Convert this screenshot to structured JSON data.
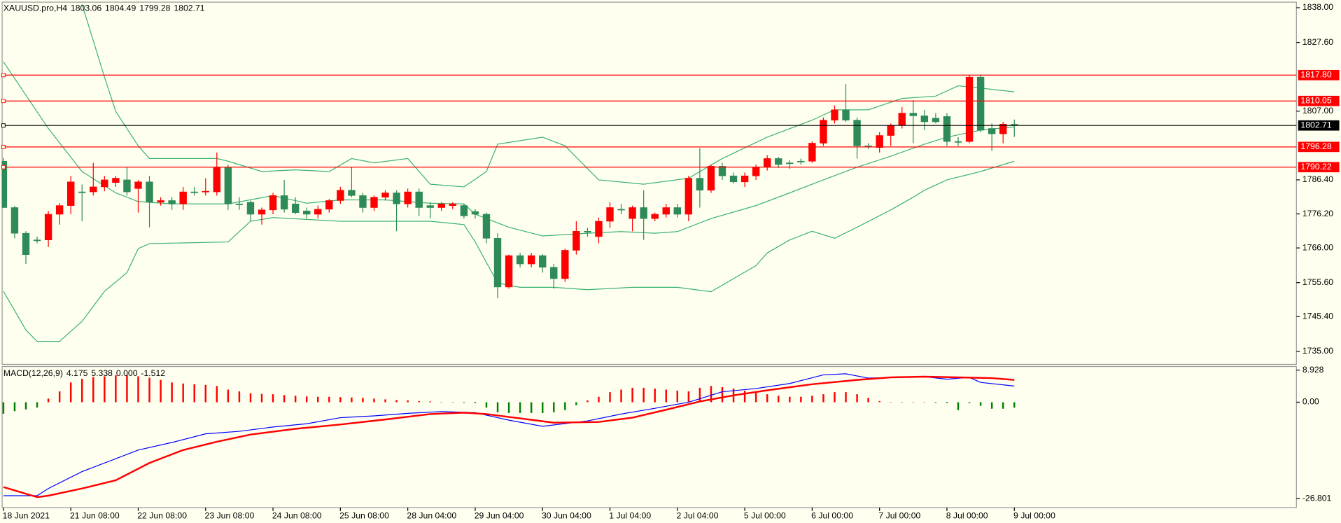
{
  "chart_data": [
    {
      "type": "candlestick",
      "title": "XAUUSD.pro,H4",
      "categories": [
        "18 Jun 2021",
        null,
        null,
        null,
        null,
        null,
        "21 Jun 08:00",
        null,
        null,
        null,
        null,
        null,
        "22 Jun 08:00",
        null,
        null,
        null,
        null,
        null,
        "23 Jun 08:00",
        null,
        null,
        null,
        null,
        null,
        "24 Jun 08:00",
        null,
        null,
        null,
        null,
        null,
        "25 Jun 08:00",
        null,
        null,
        null,
        null,
        null,
        "28 Jun 04:00",
        null,
        null,
        null,
        null,
        null,
        "29 Jun 04:00",
        null,
        null,
        null,
        null,
        null,
        "30 Jun 04:00",
        null,
        null,
        null,
        null,
        null,
        "1 Jul 04:00",
        null,
        null,
        null,
        null,
        null,
        "2 Jul 04:00",
        null,
        null,
        null,
        null,
        null,
        "5 Jul 00:00",
        null,
        null,
        null,
        null,
        null,
        "6 Jul 00:00",
        null,
        null,
        null,
        null,
        null,
        "7 Jul 00:00",
        null,
        null,
        null,
        null,
        null,
        "8 Jul 00:00",
        null,
        null,
        null,
        null,
        null,
        "9 Jul 00:00"
      ],
      "candles": [
        [
          1792.0,
          1793.0,
          1778.0,
          1778.1
        ],
        [
          1778.1,
          1778.6,
          1768.9,
          1770.4
        ],
        [
          1770.4,
          1771.0,
          1761.2,
          1764.0
        ],
        [
          1768.4,
          1769.4,
          1767.4,
          1768.4
        ],
        [
          1768.4,
          1777.1,
          1766.3,
          1776.1
        ],
        [
          1776.1,
          1779.4,
          1773.0,
          1778.7
        ],
        [
          1778.7,
          1787.6,
          1776.1,
          1785.8
        ],
        [
          1782.8,
          1785.0,
          1774.0,
          1782.8
        ],
        [
          1782.8,
          1791.5,
          1781.7,
          1784.3
        ],
        [
          1784.3,
          1787.6,
          1783.0,
          1786.4
        ],
        [
          1785.6,
          1787.6,
          1784.3,
          1786.9
        ],
        [
          1786.4,
          1790.2,
          1781.7,
          1782.8
        ],
        [
          1783.8,
          1786.4,
          1776.6,
          1785.8
        ],
        [
          1785.8,
          1787.6,
          1772.2,
          1779.7
        ],
        [
          1779.7,
          1781.2,
          1778.7,
          1780.2
        ],
        [
          1780.2,
          1781.2,
          1777.4,
          1779.2
        ],
        [
          1779.2,
          1784.3,
          1777.4,
          1782.8
        ],
        [
          1782.8,
          1784.3,
          1781.7,
          1782.8
        ],
        [
          1782.8,
          1786.9,
          1781.7,
          1783.0
        ],
        [
          1782.8,
          1794.6,
          1781.7,
          1790.2
        ],
        [
          1790.2,
          1791.0,
          1777.4,
          1779.2
        ],
        [
          1779.2,
          1781.2,
          1777.4,
          1779.2
        ],
        [
          1779.7,
          1780.2,
          1774.0,
          1776.1
        ],
        [
          1776.1,
          1778.1,
          1773.0,
          1777.4
        ],
        [
          1777.4,
          1782.5,
          1776.1,
          1781.7
        ],
        [
          1781.7,
          1786.4,
          1776.6,
          1777.6
        ],
        [
          1779.2,
          1781.2,
          1776.1,
          1776.6
        ],
        [
          1777.1,
          1778.1,
          1774.8,
          1776.1
        ],
        [
          1776.1,
          1778.7,
          1774.8,
          1777.6
        ],
        [
          1777.6,
          1780.7,
          1776.6,
          1780.2
        ],
        [
          1780.2,
          1784.3,
          1779.2,
          1783.3
        ],
        [
          1783.3,
          1790.2,
          1781.2,
          1781.7
        ],
        [
          1781.7,
          1782.5,
          1776.6,
          1778.1
        ],
        [
          1778.1,
          1781.7,
          1777.1,
          1781.2
        ],
        [
          1781.2,
          1783.3,
          1780.2,
          1782.5
        ],
        [
          1782.5,
          1783.3,
          1771.0,
          1779.2
        ],
        [
          1779.2,
          1783.8,
          1778.1,
          1782.8
        ],
        [
          1782.8,
          1783.8,
          1775.6,
          1778.1
        ],
        [
          1778.7,
          1779.7,
          1774.8,
          1778.1
        ],
        [
          1778.1,
          1779.7,
          1777.1,
          1779.2
        ],
        [
          1778.7,
          1779.7,
          1777.6,
          1779.2
        ],
        [
          1778.7,
          1779.2,
          1774.8,
          1775.6
        ],
        [
          1776.9,
          1777.6,
          1774.8,
          1776.1
        ],
        [
          1776.1,
          1776.6,
          1767.4,
          1768.9
        ],
        [
          1768.9,
          1770.4,
          1750.9,
          1754.3
        ],
        [
          1754.3,
          1764.0,
          1753.8,
          1763.7
        ],
        [
          1763.7,
          1764.5,
          1760.2,
          1761.2
        ],
        [
          1761.2,
          1764.5,
          1760.2,
          1763.7
        ],
        [
          1763.7,
          1764.2,
          1758.6,
          1760.2
        ],
        [
          1760.2,
          1761.2,
          1753.8,
          1756.8
        ],
        [
          1756.8,
          1765.8,
          1755.8,
          1765.3
        ],
        [
          1765.3,
          1774.0,
          1764.0,
          1771.0
        ],
        [
          1771.0,
          1772.0,
          1769.4,
          1771.0
        ],
        [
          1769.4,
          1775.1,
          1767.4,
          1774.0
        ],
        [
          1774.0,
          1779.7,
          1772.0,
          1778.1
        ],
        [
          1777.6,
          1779.2,
          1776.1,
          1777.4
        ],
        [
          1774.8,
          1778.7,
          1771.0,
          1778.1
        ],
        [
          1778.1,
          1783.3,
          1768.4,
          1774.8
        ],
        [
          1774.8,
          1776.6,
          1774.0,
          1776.1
        ],
        [
          1776.1,
          1779.2,
          1775.1,
          1778.1
        ],
        [
          1778.1,
          1779.2,
          1775.1,
          1776.1
        ],
        [
          1776.1,
          1787.6,
          1774.0,
          1786.9
        ],
        [
          1786.9,
          1795.9,
          1778.1,
          1783.3
        ],
        [
          1783.3,
          1791.0,
          1782.5,
          1790.5
        ],
        [
          1790.5,
          1791.5,
          1786.4,
          1787.6
        ],
        [
          1787.6,
          1788.6,
          1785.3,
          1785.8
        ],
        [
          1785.8,
          1788.6,
          1784.3,
          1787.6
        ],
        [
          1787.6,
          1791.0,
          1786.4,
          1790.2
        ],
        [
          1790.2,
          1793.8,
          1789.2,
          1792.8
        ],
        [
          1792.8,
          1793.3,
          1790.0,
          1791.0
        ],
        [
          1791.5,
          1792.3,
          1789.7,
          1791.5
        ],
        [
          1792.0,
          1792.8,
          1791.0,
          1792.0
        ],
        [
          1792.0,
          1797.9,
          1791.5,
          1797.4
        ],
        [
          1797.4,
          1805.1,
          1796.6,
          1804.3
        ],
        [
          1804.3,
          1808.7,
          1803.3,
          1807.4
        ],
        [
          1807.4,
          1815.1,
          1803.8,
          1804.3
        ],
        [
          1804.3,
          1805.1,
          1792.8,
          1796.6
        ],
        [
          1796.6,
          1797.4,
          1795.6,
          1796.6
        ],
        [
          1796.1,
          1800.7,
          1794.6,
          1799.7
        ],
        [
          1799.7,
          1803.3,
          1796.6,
          1802.8
        ],
        [
          1802.8,
          1808.2,
          1801.8,
          1806.4
        ],
        [
          1806.4,
          1810.3,
          1797.4,
          1805.6
        ],
        [
          1805.6,
          1807.4,
          1801.3,
          1803.8
        ],
        [
          1804.9,
          1806.4,
          1803.3,
          1803.8
        ],
        [
          1805.4,
          1806.4,
          1796.6,
          1797.9
        ],
        [
          1797.9,
          1799.2,
          1796.6,
          1797.9
        ],
        [
          1797.9,
          1817.8,
          1797.4,
          1817.2
        ],
        [
          1817.2,
          1818.0,
          1800.7,
          1801.3
        ],
        [
          1801.8,
          1803.3,
          1795.1,
          1800.2
        ],
        [
          1800.2,
          1803.8,
          1797.4,
          1803.1
        ],
        [
          1803.06,
          1804.49,
          1799.28,
          1802.71
        ]
      ],
      "up_color": "#ff0000",
      "down_color": "#2e8b57",
      "bands": [
        {
          "color": "#3cb371",
          "x": [
            7,
            9,
            10,
            12,
            13,
            19,
            20,
            23,
            26,
            29,
            31,
            33,
            36,
            38,
            41,
            43,
            44,
            48,
            50,
            53,
            57,
            61,
            64,
            68,
            72,
            74,
            77,
            80,
            83,
            85,
            87,
            90
          ],
          "values": [
            1839.0,
            1817.2,
            1806.9,
            1796.6,
            1792.8,
            1792.8,
            1792.0,
            1788.9,
            1789.4,
            1788.9,
            1792.8,
            1791.5,
            1792.8,
            1785.1,
            1784.3,
            1788.9,
            1797.1,
            1799.2,
            1796.6,
            1786.4,
            1785.1,
            1786.9,
            1792.8,
            1799.2,
            1804.3,
            1807.4,
            1807.4,
            1810.8,
            1811.5,
            1814.6,
            1813.9,
            1812.8
          ]
        },
        {
          "color": "#3cb371",
          "x": [
            0,
            4,
            7,
            10,
            12,
            15,
            20,
            24,
            27,
            30,
            34,
            38,
            41,
            42,
            45,
            48,
            52,
            55,
            58,
            60,
            63,
            67,
            70,
            73,
            76,
            79,
            82,
            84,
            87,
            90
          ],
          "values": [
            1821.8,
            1801.8,
            1788.9,
            1782.5,
            1779.9,
            1779.2,
            1779.2,
            1781.7,
            1779.4,
            1780.4,
            1780.4,
            1779.4,
            1779.2,
            1776.1,
            1772.2,
            1769.6,
            1770.4,
            1770.9,
            1770.4,
            1770.9,
            1774.8,
            1778.7,
            1782.5,
            1786.4,
            1790.2,
            1793.5,
            1797.1,
            1799.2,
            1801.3,
            1802.3
          ]
        },
        {
          "color": "#3cb371",
          "x": [
            0,
            2,
            3,
            5,
            7,
            9,
            11,
            12,
            13,
            20,
            21,
            22,
            24,
            30,
            38,
            41,
            42,
            44,
            46,
            49,
            52,
            56,
            60,
            63,
            65,
            67,
            68,
            70,
            72,
            74,
            76,
            79,
            81,
            82,
            84,
            87,
            90
          ],
          "values": [
            1753.0,
            1741.4,
            1738.0,
            1738.0,
            1744.0,
            1753.0,
            1758.6,
            1765.8,
            1767.3,
            1767.8,
            1770.9,
            1774.0,
            1775.1,
            1774.0,
            1774.0,
            1773.0,
            1767.8,
            1755.5,
            1754.2,
            1754.2,
            1753.5,
            1754.2,
            1754.2,
            1752.9,
            1756.8,
            1760.7,
            1764.5,
            1768.4,
            1771.0,
            1768.9,
            1772.2,
            1777.4,
            1781.2,
            1783.3,
            1786.4,
            1788.9,
            1792.0
          ]
        }
      ],
      "levels": [
        {
          "value": 1817.8,
          "label": "1817.80"
        },
        1810.05,
        1796.28,
        1790.22
      ],
      "level_color": "#ff0000",
      "price_line_color": "#000000",
      "ylim": [
        1731.1,
        1839.8
      ],
      "yticks": [
        {
          "value": 1838,
          "label": "1838.00"
        },
        {
          "value": 1827.6,
          "label": "1827.60"
        },
        {
          "value": 1807,
          "label": "1807.00"
        },
        {
          "value": 1786.4,
          "label": "1786.40"
        },
        {
          "value": 1776.2,
          "label": "1776.20"
        },
        {
          "value": 1766,
          "label": "1766.00"
        },
        {
          "value": 1755.6,
          "label": "1755.60"
        },
        {
          "value": 1745.4,
          "label": "1745.40"
        },
        {
          "value": 1735,
          "label": "1735.00"
        }
      ]
    },
    {
      "type": "macd",
      "title": "MACD(12,26,9)",
      "header_values": [
        4.175,
        5.338,
        {
          "value": 0,
          "label": "0.000"
        },
        -1.512
      ],
      "histogram": [
        -3.2,
        -2.5,
        -2.0,
        -1.5,
        1.0,
        3.0,
        5.5,
        6.5,
        7.0,
        7.2,
        7.5,
        7.5,
        7.2,
        6.8,
        6.2,
        5.5,
        5.2,
        5.0,
        4.8,
        4.5,
        3.5,
        3.0,
        2.5,
        2.3,
        2.2,
        2.0,
        1.8,
        1.6,
        1.5,
        1.5,
        1.4,
        1.3,
        1.2,
        1.0,
        0.8,
        0.6,
        0.5,
        0.3,
        0.2,
        0.1,
        -0.1,
        -0.2,
        -0.3,
        -1.5,
        -2.8,
        -3.0,
        -3.0,
        -3.0,
        -3.0,
        -2.8,
        -2.2,
        -0.8,
        0.5,
        1.5,
        2.8,
        3.5,
        4.0,
        4.0,
        3.8,
        3.5,
        3.2,
        3.0,
        4.0,
        4.5,
        4.2,
        3.8,
        3.2,
        2.8,
        2.2,
        1.8,
        1.5,
        1.5,
        1.8,
        2.2,
        2.8,
        2.8,
        2.2,
        1.2,
        0.3,
        0.1,
        0.1,
        0.1,
        0.1,
        -0.2,
        -0.3,
        -2.2,
        -0.3,
        -1.0,
        -1.8,
        -1.8,
        -1.512
      ],
      "up_color": "#ff0000",
      "down_color": "#008000",
      "series": [
        {
          "color": "#0000ff",
          "x": [
            0,
            3,
            4,
            7,
            12,
            15,
            18,
            21,
            24,
            27,
            30,
            33,
            36,
            39,
            42,
            44,
            45,
            48,
            52,
            55,
            58,
            61,
            64,
            67,
            70,
            73,
            75,
            77,
            80,
            82,
            84,
            86,
            87,
            90
          ],
          "values": [
            -26.0,
            -26.0,
            -24.0,
            -19.3,
            -13.3,
            -11.2,
            -8.8,
            -8.1,
            -6.9,
            -6.0,
            -4.3,
            -3.8,
            -3.1,
            -2.6,
            -2.9,
            -4.3,
            -5.0,
            -6.7,
            -5.2,
            -3.3,
            -1.7,
            0,
            2.9,
            3.8,
            5.2,
            7.6,
            7.9,
            6.7,
            6.9,
            7.1,
            6.4,
            6.9,
            5.5,
            4.5
          ]
        },
        {
          "color": "#ff0000",
          "x": [
            0,
            3,
            4,
            7,
            10,
            13,
            16,
            19,
            22,
            26,
            30,
            34,
            38,
            41,
            43,
            46,
            49,
            53,
            56,
            59,
            62,
            65,
            68,
            72,
            76,
            79,
            82,
            85,
            88,
            90
          ],
          "values": [
            -23.6,
            -26.4,
            -26.0,
            -24.0,
            -21.7,
            -16.9,
            -13.3,
            -11.0,
            -9.0,
            -7.4,
            -6.2,
            -4.8,
            -3.3,
            -2.9,
            -3.3,
            -4.5,
            -5.7,
            -5.5,
            -4.3,
            -2.1,
            0.2,
            1.9,
            3.3,
            5.0,
            6.2,
            6.9,
            7.1,
            6.9,
            6.7,
            6.2
          ]
        }
      ],
      "ylim": [
        -29.3,
        9.8
      ],
      "yticks": [
        8.928,
        {
          "value": 0,
          "label": "0.00"
        },
        -26.801
      ]
    }
  ]
}
